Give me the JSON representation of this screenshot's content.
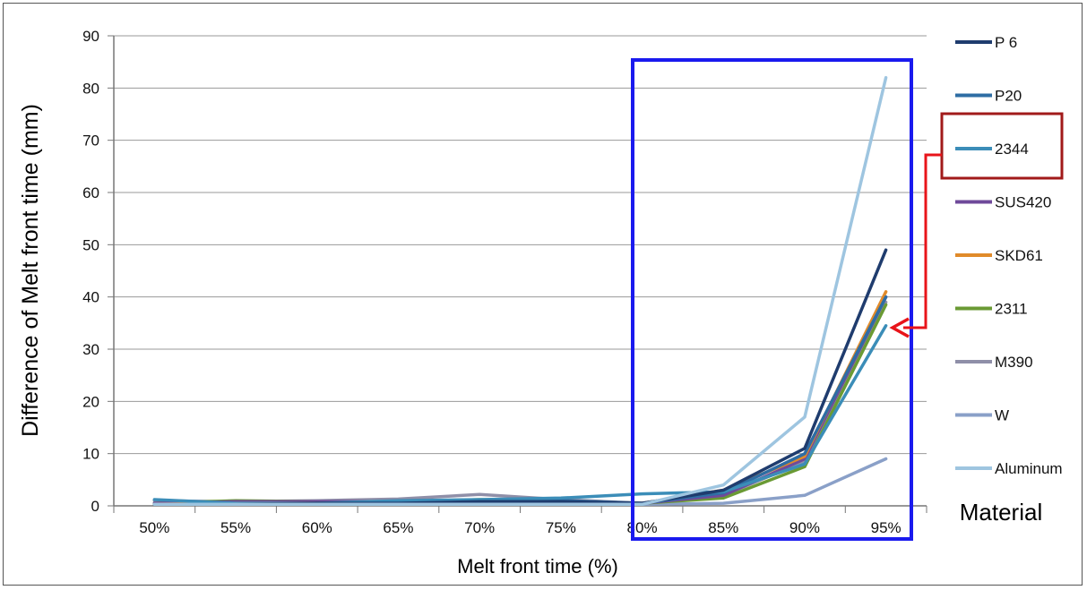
{
  "chart_data": {
    "type": "line",
    "xlabel": "Melt front time  (%)",
    "ylabel": "Difference of Melt front time  (mm)",
    "categories": [
      "50%",
      "55%",
      "60%",
      "65%",
      "70%",
      "75%",
      "80%",
      "85%",
      "90%",
      "95%"
    ],
    "ylim": [
      0,
      90
    ],
    "yticks": [
      "0",
      "10",
      "20",
      "30",
      "40",
      "50",
      "60",
      "70",
      "80",
      "90"
    ],
    "grid": true,
    "legend_title": "Material",
    "legend_position": "right",
    "series": [
      {
        "name": "P 6",
        "color": "#1f3c6e",
        "values": [
          0.3,
          0.3,
          0.5,
          0.5,
          0.8,
          0.8,
          0.5,
          3,
          11,
          49
        ]
      },
      {
        "name": "P20",
        "color": "#2e6da4",
        "values": [
          0.3,
          0.3,
          0.5,
          0.5,
          1.0,
          1.0,
          0.5,
          2.5,
          10,
          40
        ]
      },
      {
        "name": "2344",
        "color": "#3b8db8",
        "values": [
          1.2,
          0.5,
          0.5,
          1.0,
          1.2,
          1.5,
          2.3,
          2.7,
          8,
          34.5
        ]
      },
      {
        "name": "SUS420",
        "color": "#6f4a9a",
        "values": [
          0.5,
          0.8,
          0.8,
          0.8,
          1.0,
          1.0,
          0.5,
          2,
          9,
          40
        ]
      },
      {
        "name": "SKD61",
        "color": "#e08a2a",
        "values": [
          0.3,
          0.5,
          0.5,
          0.5,
          0.5,
          0.5,
          0.5,
          3,
          9.5,
          41
        ]
      },
      {
        "name": "2311",
        "color": "#6a9a34",
        "values": [
          0.5,
          1.0,
          0.8,
          0.8,
          1.2,
          1.0,
          0.5,
          1.5,
          7.5,
          38.5
        ]
      },
      {
        "name": "M390",
        "color": "#8f8fa8",
        "values": [
          1.0,
          0.8,
          1.0,
          1.3,
          2.2,
          1.2,
          0.5,
          2,
          8.5,
          39
        ]
      },
      {
        "name": "W",
        "color": "#8aa0c8",
        "values": [
          0.3,
          0.3,
          0.3,
          0.3,
          0.3,
          0.3,
          0.3,
          0.5,
          2,
          9
        ]
      },
      {
        "name": "Aluminum",
        "color": "#9ec5e0",
        "values": [
          0.3,
          0.3,
          0.3,
          0.3,
          0.3,
          0.3,
          0.3,
          4,
          17,
          82
        ]
      }
    ]
  },
  "annotations": {
    "highlight_box_color": "#1a1aee",
    "legend_highlight_color": "#a11a1a",
    "arrow_color": "#e8141a"
  }
}
